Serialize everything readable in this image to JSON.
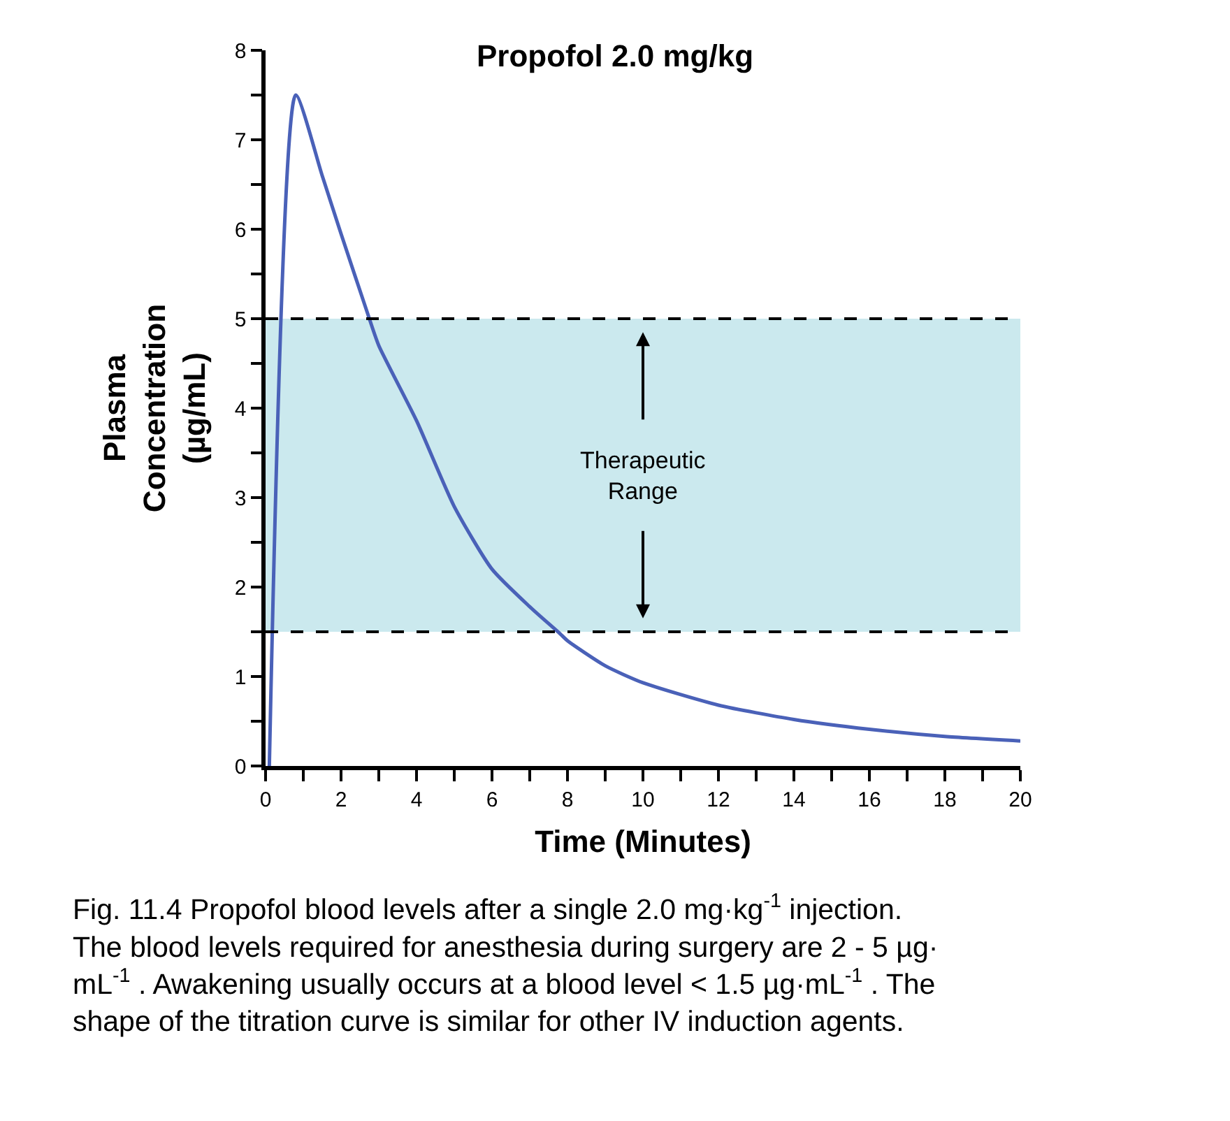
{
  "chart_data": {
    "type": "line",
    "title": "Propofol 2.0 mg/kg",
    "xlabel": "Time (Minutes)",
    "ylabel": "Plasma\nConcentration\n(µg/mL)",
    "series": [
      {
        "color": "#4a61b8",
        "x": [
          0.1,
          0.8,
          1.5,
          2,
          2.75,
          3,
          4,
          5,
          6,
          7,
          7.8,
          8,
          9,
          10,
          12,
          14,
          16,
          18,
          20
        ],
        "values": [
          0,
          7.5,
          6.6,
          5.95,
          5,
          4.7,
          3.86,
          2.9,
          2.2,
          1.78,
          1.48,
          1.4,
          1.12,
          0.93,
          0.68,
          0.52,
          0.41,
          0.33,
          0.28
        ]
      }
    ],
    "xlim": [
      0,
      20
    ],
    "ylim": [
      0,
      8
    ],
    "xticks": [
      0,
      {
        "value": 1,
        "label": null
      },
      2,
      {
        "value": 3,
        "label": null
      },
      4,
      {
        "value": 5,
        "label": null
      },
      6,
      {
        "value": 7,
        "label": null
      },
      8,
      {
        "value": 9,
        "label": null
      },
      10,
      {
        "value": 11,
        "label": null
      },
      12,
      {
        "value": 13,
        "label": null
      },
      14,
      {
        "value": 15,
        "label": null
      },
      16,
      {
        "value": 17,
        "label": null
      },
      18,
      {
        "value": 19,
        "label": null
      },
      20
    ],
    "yticks": [
      0,
      {
        "value": 0.5,
        "label": null
      },
      1,
      {
        "value": 1.5,
        "label": null
      },
      2,
      {
        "value": 2.5,
        "label": null
      },
      3,
      {
        "value": 3.5,
        "label": null
      },
      4,
      {
        "value": 4.5,
        "label": null
      },
      5,
      {
        "value": 5.5,
        "label": null
      },
      6,
      {
        "value": 6.5,
        "label": null
      },
      7,
      {
        "value": 7.5,
        "label": null
      },
      8
    ],
    "bands": [
      {
        "axis": "y",
        "from": 1.5,
        "to": 5,
        "color": "#cbe9ee"
      }
    ],
    "ref_lines": [
      {
        "axis": "y",
        "value": 5,
        "line_style": "dashed",
        "color": "#000000"
      },
      {
        "axis": "y",
        "value": 1.5,
        "line_style": "dashed",
        "color": "#000000"
      }
    ],
    "annotations": [
      "Therapeutic\nRange",
      "Fig. 11.4 Propofol blood levels after a single 2.0 mg·kg$^{-1}$ injection.\nThe blood levels required for anesthesia during surgery are 2 - 5 µg·\nmL$^{-1}$ . Awakening usually occurs at a blood level < 1.5 µg·mL$^{-1}$ . The\nshape of the titration curve is similar for other IV induction agents."
    ],
    "grid": false,
    "marker": "none",
    "line_style": "solid"
  }
}
